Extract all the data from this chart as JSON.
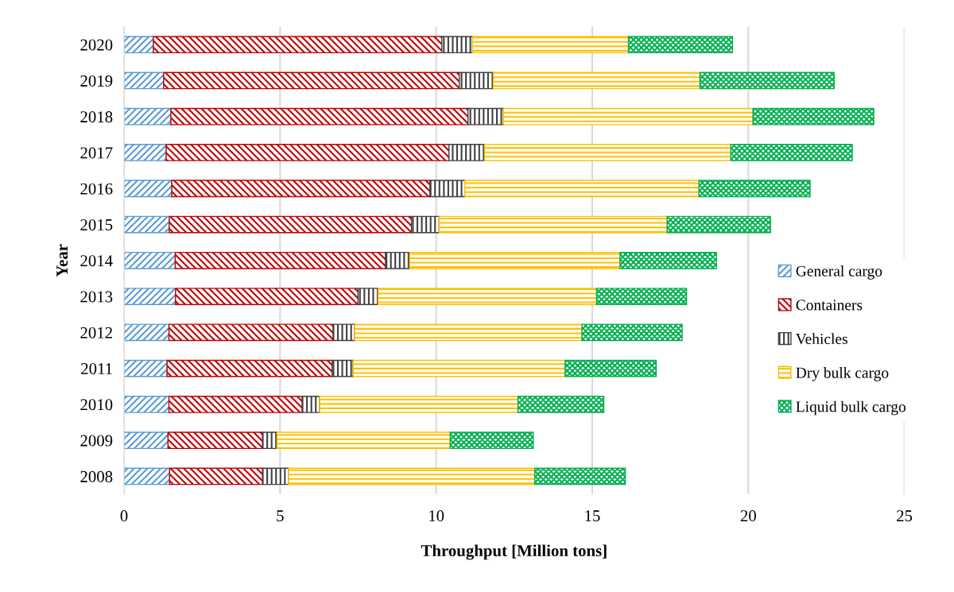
{
  "chart_data": {
    "type": "bar",
    "orientation": "horizontal",
    "stacked": true,
    "xlabel": "Throughput [Million tons]",
    "ylabel": "Year",
    "categories": [
      "2020",
      "2019",
      "2018",
      "2017",
      "2016",
      "2015",
      "2014",
      "2013",
      "2012",
      "2011",
      "2010",
      "2009",
      "2008"
    ],
    "series": [
      {
        "name": "General cargo",
        "color": "#5b9bd5",
        "values": [
          0.94,
          1.27,
          1.5,
          1.35,
          1.53,
          1.45,
          1.64,
          1.65,
          1.44,
          1.38,
          1.44,
          1.41,
          1.46
        ]
      },
      {
        "name": "Containers",
        "color": "#c00000",
        "values": [
          9.24,
          9.47,
          9.52,
          9.06,
          8.27,
          7.76,
          6.74,
          5.85,
          5.26,
          5.29,
          4.27,
          3.03,
          2.98
        ]
      },
      {
        "name": "Vehicles",
        "color": "#404040",
        "values": [
          0.99,
          1.09,
          1.14,
          1.14,
          1.12,
          0.89,
          0.77,
          0.64,
          0.69,
          0.67,
          0.56,
          0.46,
          0.83
        ]
      },
      {
        "name": "Dry bulk cargo",
        "color": "#ffc000",
        "values": [
          4.99,
          6.62,
          7.99,
          7.89,
          7.5,
          7.3,
          6.74,
          7.0,
          7.28,
          6.79,
          6.35,
          5.55,
          7.89
        ]
      },
      {
        "name": "Liquid bulk cargo",
        "color": "#00b050",
        "values": [
          3.33,
          4.3,
          3.87,
          3.89,
          3.56,
          3.31,
          3.09,
          2.88,
          3.21,
          2.92,
          2.75,
          2.66,
          2.9
        ]
      }
    ],
    "xlim": [
      0,
      25
    ],
    "xticks": [
      0,
      5,
      10,
      15,
      20,
      25
    ],
    "grid": "x",
    "legend": "right"
  }
}
